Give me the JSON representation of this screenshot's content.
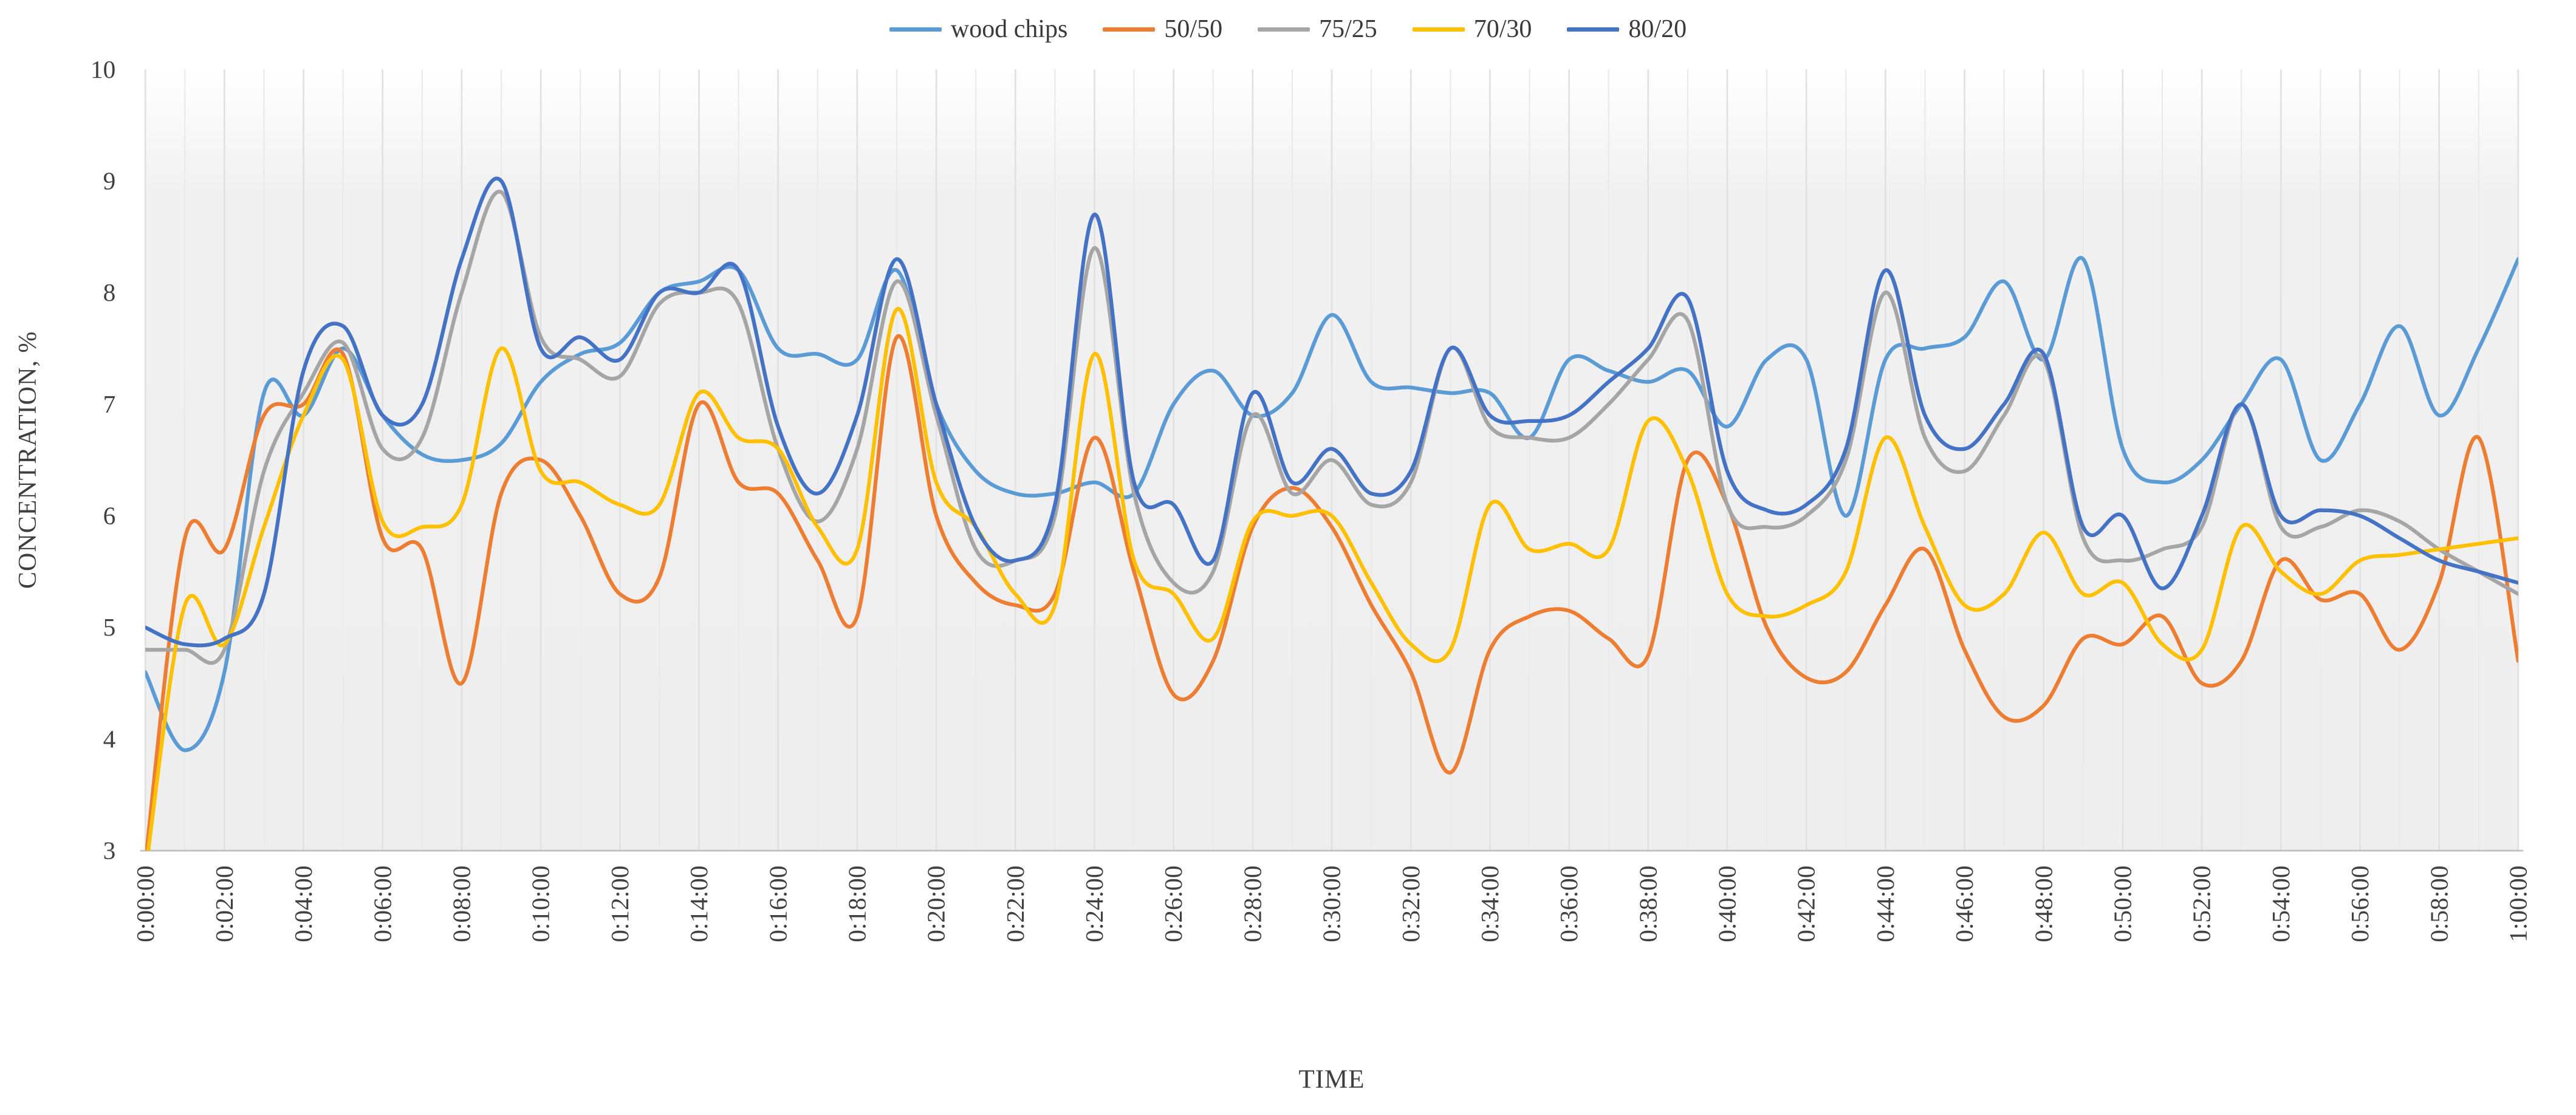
{
  "chart_data": {
    "type": "line",
    "title": "",
    "xlabel": "TIME",
    "ylabel": "CONCENTRATION, %",
    "ylim": [
      3,
      10
    ],
    "y_ticks": [
      3,
      4,
      5,
      6,
      7,
      8,
      9,
      10
    ],
    "x_range_minutes": [
      0,
      60
    ],
    "x_step_minutes": 1,
    "x_tick_labels": [
      "0:00:00",
      "0:02:00",
      "0:04:00",
      "0:06:00",
      "0:08:00",
      "0:10:00",
      "0:12:00",
      "0:14:00",
      "0:16:00",
      "0:18:00",
      "0:20:00",
      "0:22:00",
      "0:24:00",
      "0:26:00",
      "0:28:00",
      "0:30:00",
      "0:32:00",
      "0:34:00",
      "0:36:00",
      "0:38:00",
      "0:40:00",
      "0:42:00",
      "0:44:00",
      "0:46:00",
      "0:48:00",
      "0:50:00",
      "0:52:00",
      "0:54:00",
      "0:56:00",
      "0:58:00",
      "1:00:00"
    ],
    "legend_position": "top",
    "grid": {
      "vertical_minor_every_min": 1,
      "vertical_major_every_min": 2,
      "horizontal": false
    },
    "plot_bg_top": "#ffffff",
    "plot_bg": "#f0f0f0",
    "axis_text_color": "#404040",
    "series": [
      {
        "name": "wood chips",
        "color": "#5B9BD5",
        "values": [
          4.6,
          3.9,
          4.6,
          7.1,
          6.9,
          7.5,
          6.9,
          6.55,
          6.5,
          6.65,
          7.2,
          7.45,
          7.55,
          8.0,
          8.1,
          8.2,
          7.5,
          7.45,
          7.4,
          8.2,
          7.0,
          6.4,
          6.2,
          6.2,
          6.3,
          6.2,
          7.0,
          7.3,
          6.9,
          7.1,
          7.8,
          7.2,
          7.15,
          7.1,
          7.1,
          6.7,
          7.4,
          7.3,
          7.2,
          7.3,
          6.8,
          7.4,
          7.4,
          6.0,
          7.4,
          7.5,
          7.6,
          8.1,
          7.4,
          8.3,
          6.6,
          6.3,
          6.5,
          7.0,
          7.4,
          6.5,
          7.0,
          7.7,
          6.9,
          7.5,
          8.3
        ]
      },
      {
        "name": "50/50",
        "color": "#ED7D31",
        "values": [
          2.9,
          5.8,
          5.7,
          6.9,
          7.0,
          7.45,
          5.8,
          5.7,
          4.5,
          6.2,
          6.5,
          6.0,
          5.3,
          5.45,
          7.0,
          6.3,
          6.2,
          5.6,
          5.1,
          7.6,
          6.0,
          5.4,
          5.2,
          5.3,
          6.7,
          5.5,
          4.4,
          4.7,
          5.9,
          6.25,
          5.9,
          5.2,
          4.6,
          3.7,
          4.8,
          5.1,
          5.15,
          4.9,
          4.75,
          6.5,
          6.1,
          5.0,
          4.55,
          4.6,
          5.2,
          5.7,
          4.8,
          4.2,
          4.3,
          4.9,
          4.85,
          5.1,
          4.5,
          4.7,
          5.6,
          5.25,
          5.3,
          4.8,
          5.4,
          6.7,
          4.7
        ]
      },
      {
        "name": "75/25",
        "color": "#A5A5A5",
        "values": [
          4.8,
          4.8,
          4.8,
          6.4,
          7.1,
          7.55,
          6.6,
          6.7,
          8.0,
          8.9,
          7.6,
          7.4,
          7.25,
          7.9,
          8.0,
          7.9,
          6.6,
          5.95,
          6.6,
          8.1,
          6.9,
          5.7,
          5.6,
          6.0,
          8.4,
          6.2,
          5.4,
          5.5,
          6.9,
          6.2,
          6.5,
          6.1,
          6.3,
          7.5,
          6.8,
          6.7,
          6.7,
          7.0,
          7.4,
          7.75,
          6.1,
          5.9,
          6.0,
          6.5,
          8.0,
          6.7,
          6.4,
          6.9,
          7.4,
          5.8,
          5.6,
          5.7,
          5.9,
          7.0,
          5.9,
          5.9,
          6.05,
          5.95,
          5.7,
          5.5,
          5.3
        ]
      },
      {
        "name": "70/30",
        "color": "#FFC000",
        "values": [
          2.8,
          5.2,
          4.85,
          5.9,
          6.9,
          7.4,
          5.95,
          5.9,
          6.1,
          7.5,
          6.4,
          6.3,
          6.1,
          6.1,
          7.1,
          6.7,
          6.6,
          5.9,
          5.7,
          7.85,
          6.3,
          5.9,
          5.3,
          5.2,
          7.45,
          5.6,
          5.3,
          4.9,
          5.95,
          6.0,
          6.0,
          5.4,
          4.85,
          4.8,
          6.1,
          5.7,
          5.75,
          5.7,
          6.85,
          6.4,
          5.3,
          5.1,
          5.2,
          5.5,
          6.7,
          5.9,
          5.2,
          5.3,
          5.85,
          5.3,
          5.4,
          4.85,
          4.8,
          5.9,
          5.5,
          5.3,
          5.6,
          5.65,
          5.7,
          5.75,
          5.8
        ]
      },
      {
        "name": "80/20",
        "color": "#4472C4",
        "values": [
          5.0,
          4.85,
          4.9,
          5.3,
          7.3,
          7.7,
          6.9,
          7.0,
          8.3,
          9.0,
          7.5,
          7.6,
          7.4,
          8.0,
          8.0,
          8.2,
          6.8,
          6.2,
          6.9,
          8.3,
          7.0,
          5.9,
          5.6,
          6.1,
          8.7,
          6.3,
          6.1,
          5.6,
          7.1,
          6.3,
          6.6,
          6.2,
          6.4,
          7.5,
          6.9,
          6.85,
          6.9,
          7.2,
          7.5,
          7.95,
          6.4,
          6.05,
          6.1,
          6.6,
          8.2,
          6.9,
          6.6,
          7.0,
          7.45,
          5.9,
          6.0,
          5.35,
          6.0,
          7.0,
          6.0,
          6.05,
          6.0,
          5.8,
          5.6,
          5.5,
          5.4
        ]
      }
    ]
  }
}
